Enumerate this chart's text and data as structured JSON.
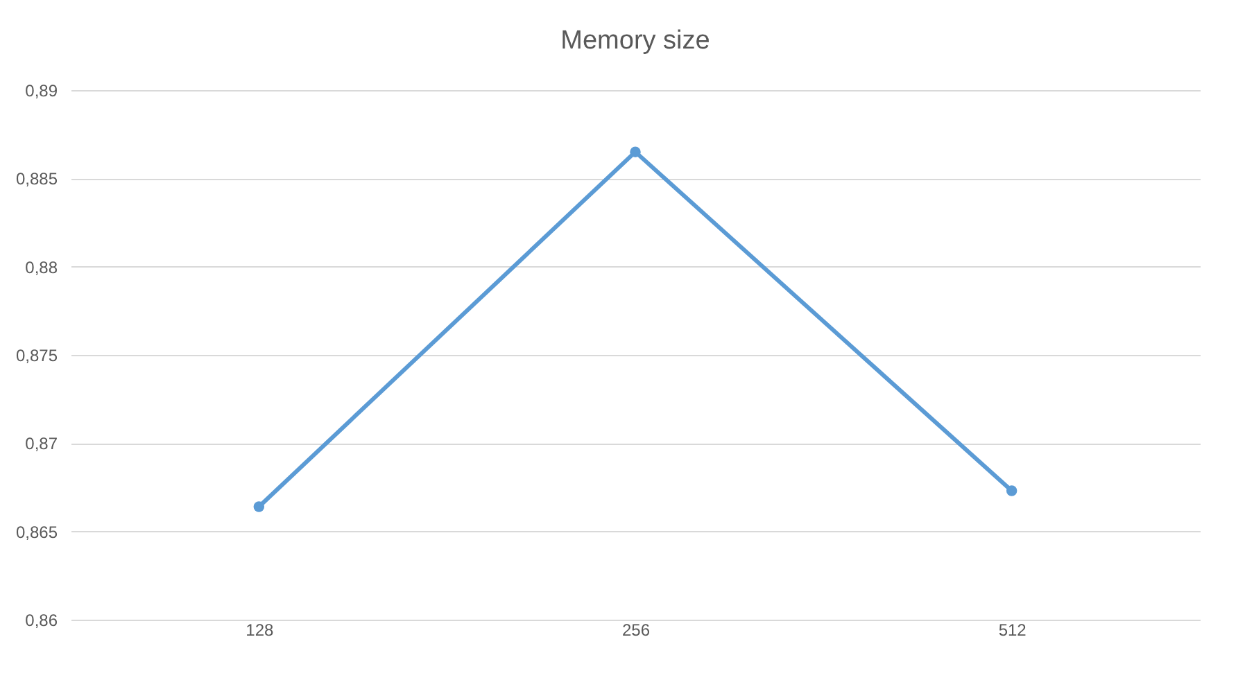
{
  "chart_data": {
    "type": "line",
    "title": "Memory size",
    "categories": [
      "128",
      "256",
      "512"
    ],
    "series": [
      {
        "color": "#5b9bd5",
        "values": [
          0.8664,
          0.8865,
          0.8673
        ]
      }
    ],
    "ylim": [
      0.86,
      0.89
    ],
    "yticks": [
      {
        "value": 0.86,
        "label": "0,86"
      },
      {
        "value": 0.865,
        "label": "0,865"
      },
      {
        "value": 0.87,
        "label": "0,87"
      },
      {
        "value": 0.875,
        "label": "0,875"
      },
      {
        "value": 0.88,
        "label": "0,88"
      },
      {
        "value": 0.885,
        "label": "0,885"
      },
      {
        "value": 0.89,
        "label": "0,89"
      }
    ],
    "grid": "y",
    "marker": "circle",
    "line_style": "solid",
    "legend": false
  }
}
